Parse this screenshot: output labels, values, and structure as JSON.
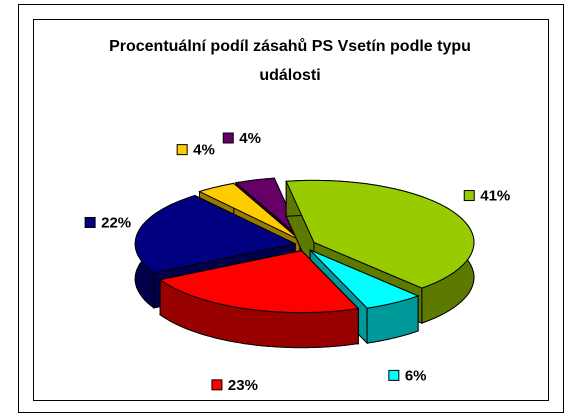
{
  "chart_data": {
    "type": "pie",
    "title": "Procentuální podíl zásahů PS Vsetín podle typu události",
    "values": [
      41,
      6,
      23,
      22,
      4,
      4
    ],
    "value_labels": [
      "41%",
      "6%",
      "23%",
      "22%",
      "4%",
      "4%"
    ],
    "colors": [
      "#99cc00",
      "#00ffff",
      "#ff0000",
      "#000080",
      "#ffcc00",
      "#660066"
    ]
  }
}
